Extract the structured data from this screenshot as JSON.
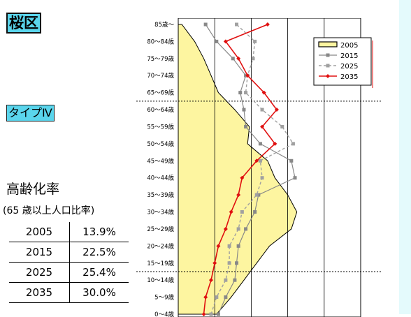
{
  "title": "桜区",
  "type_label": "タイプⅣ",
  "aging": {
    "title": "高齢化率",
    "subtitle": "(65 歳以上人口比率)",
    "rows": [
      {
        "year": "2005",
        "rate": "13.9%"
      },
      {
        "year": "2015",
        "rate": "22.5%"
      },
      {
        "year": "2025",
        "rate": "25.4%"
      },
      {
        "year": "2035",
        "rate": "30.0%"
      }
    ]
  },
  "chart_data": {
    "type": "line",
    "orientation": "horizontal",
    "categories": [
      "0～4歳",
      "5～9歳",
      "10～14歳",
      "15～19歳",
      "20～24歳",
      "25～29歳",
      "30～34歳",
      "35～39歳",
      "40～44歳",
      "45～49歳",
      "50～54歳",
      "55～59歳",
      "60～64歳",
      "65～69歳",
      "70～74歳",
      "75～79歳",
      "80～84歳",
      "85歳～"
    ],
    "xlim": [
      0,
      10
    ],
    "grid": true,
    "legend_position": "top-right",
    "reference_lines": [
      "15～19歳/10～14歳",
      "65～69歳/60～64歳"
    ],
    "series": [
      {
        "name": "2005",
        "style": "area",
        "color": "#fdf5a0",
        "values": [
          2.1,
          2.9,
          3.6,
          4.3,
          5.0,
          6.2,
          6.5,
          6.0,
          5.3,
          4.9,
          3.8,
          3.9,
          3.1,
          2.2,
          1.8,
          1.4,
          0.9,
          0.2
        ]
      },
      {
        "name": "2015",
        "color": "#888888",
        "values": [
          2.2,
          2.6,
          3.1,
          3.2,
          3.3,
          3.7,
          4.2,
          4.4,
          6.4,
          6.2,
          4.5,
          3.7,
          3.6,
          3.4,
          3.7,
          3.0,
          2.1,
          1.5
        ]
      },
      {
        "name": "2025",
        "color": "#a0a0a0",
        "values": [
          1.8,
          2.1,
          2.6,
          2.8,
          2.8,
          3.3,
          3.5,
          4.3,
          4.6,
          4.5,
          6.3,
          5.7,
          4.6,
          3.7,
          3.8,
          4.1,
          4.2,
          3.2
        ]
      },
      {
        "name": "2035",
        "color": "#e01010",
        "values": [
          1.4,
          1.5,
          1.8,
          2.0,
          2.2,
          2.6,
          2.9,
          3.3,
          3.5,
          4.3,
          5.3,
          4.6,
          5.4,
          4.7,
          3.8,
          3.3,
          2.6,
          4.9
        ]
      }
    ]
  }
}
